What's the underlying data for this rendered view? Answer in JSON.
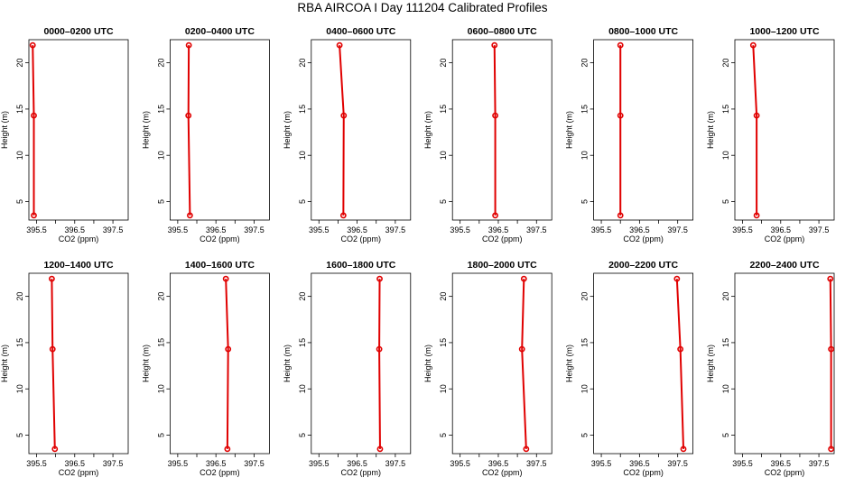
{
  "title": "RBA AIRCOA I  Day 111204  Calibrated Profiles",
  "colors": {
    "series": "#e00000",
    "axis": "#000000",
    "background": "#ffffff"
  },
  "chart_data": [
    {
      "type": "line",
      "title": "0000–0200 UTC",
      "xlabel": "CO2 (ppm)",
      "ylabel": "Height (m)",
      "xlim": [
        395.3,
        397.9
      ],
      "ylim": [
        3,
        22.5
      ],
      "x_ticks": [
        "395.5",
        "396.5",
        "397.5"
      ],
      "y_ticks": [
        "5",
        "10",
        "15",
        "20"
      ],
      "grid": false,
      "series": [
        {
          "heights": [
            3.5,
            14.3,
            21.9
          ],
          "values": [
            395.43,
            395.43,
            395.4
          ]
        }
      ]
    },
    {
      "type": "line",
      "title": "0200–0400 UTC",
      "xlabel": "CO2 (ppm)",
      "ylabel": "Height (m)",
      "xlim": [
        395.3,
        397.9
      ],
      "ylim": [
        3,
        22.5
      ],
      "x_ticks": [
        "395.5",
        "396.5",
        "397.5"
      ],
      "y_ticks": [
        "5",
        "10",
        "15",
        "20"
      ],
      "grid": false,
      "series": [
        {
          "heights": [
            3.5,
            14.3,
            21.9
          ],
          "values": [
            395.82,
            395.78,
            395.79
          ]
        }
      ]
    },
    {
      "type": "line",
      "title": "0400–0600 UTC",
      "xlabel": "CO2 (ppm)",
      "ylabel": "Height (m)",
      "xlim": [
        395.3,
        397.9
      ],
      "ylim": [
        3,
        22.5
      ],
      "x_ticks": [
        "395.5",
        "396.5",
        "397.5"
      ],
      "y_ticks": [
        "5",
        "10",
        "15",
        "20"
      ],
      "grid": false,
      "series": [
        {
          "heights": [
            3.5,
            14.3,
            21.9
          ],
          "values": [
            396.14,
            396.15,
            396.04
          ]
        }
      ]
    },
    {
      "type": "line",
      "title": "0600–0800 UTC",
      "xlabel": "CO2 (ppm)",
      "ylabel": "Height (m)",
      "xlim": [
        395.3,
        397.9
      ],
      "ylim": [
        3,
        22.5
      ],
      "x_ticks": [
        "395.5",
        "396.5",
        "397.5"
      ],
      "y_ticks": [
        "5",
        "10",
        "15",
        "20"
      ],
      "grid": false,
      "series": [
        {
          "heights": [
            3.5,
            14.3,
            21.9
          ],
          "values": [
            396.42,
            396.42,
            396.4
          ]
        }
      ]
    },
    {
      "type": "line",
      "title": "0800–1000 UTC",
      "xlabel": "CO2 (ppm)",
      "ylabel": "Height (m)",
      "xlim": [
        395.3,
        397.9
      ],
      "ylim": [
        3,
        22.5
      ],
      "x_ticks": [
        "395.5",
        "396.5",
        "397.5"
      ],
      "y_ticks": [
        "5",
        "10",
        "15",
        "20"
      ],
      "grid": false,
      "series": [
        {
          "heights": [
            3.5,
            14.3,
            21.9
          ],
          "values": [
            396.0,
            396.0,
            396.0
          ]
        }
      ]
    },
    {
      "type": "line",
      "title": "1000–1200 UTC",
      "xlabel": "CO2 (ppm)",
      "ylabel": "Height (m)",
      "xlim": [
        395.3,
        397.9
      ],
      "ylim": [
        3,
        22.5
      ],
      "x_ticks": [
        "395.5",
        "396.5",
        "397.5"
      ],
      "y_ticks": [
        "5",
        "10",
        "15",
        "20"
      ],
      "grid": false,
      "series": [
        {
          "heights": [
            3.5,
            14.3,
            21.9
          ],
          "values": [
            395.87,
            395.87,
            395.78
          ]
        }
      ]
    },
    {
      "type": "line",
      "title": "1200–1400 UTC",
      "xlabel": "CO2 (ppm)",
      "ylabel": "Height (m)",
      "xlim": [
        395.3,
        397.9
      ],
      "ylim": [
        3,
        22.5
      ],
      "x_ticks": [
        "395.5",
        "396.5",
        "397.5"
      ],
      "y_ticks": [
        "5",
        "10",
        "15",
        "20"
      ],
      "grid": false,
      "series": [
        {
          "heights": [
            3.5,
            14.3,
            21.9
          ],
          "values": [
            395.98,
            395.92,
            395.9
          ]
        }
      ]
    },
    {
      "type": "line",
      "title": "1400–1600 UTC",
      "xlabel": "CO2 (ppm)",
      "ylabel": "Height (m)",
      "xlim": [
        395.3,
        397.9
      ],
      "ylim": [
        3,
        22.5
      ],
      "x_ticks": [
        "395.5",
        "396.5",
        "397.5"
      ],
      "y_ticks": [
        "5",
        "10",
        "15",
        "20"
      ],
      "grid": false,
      "series": [
        {
          "heights": [
            3.5,
            14.3,
            21.9
          ],
          "values": [
            396.8,
            396.82,
            396.76
          ]
        }
      ]
    },
    {
      "type": "line",
      "title": "1600–1800 UTC",
      "xlabel": "CO2 (ppm)",
      "ylabel": "Height (m)",
      "xlim": [
        395.3,
        397.9
      ],
      "ylim": [
        3,
        22.5
      ],
      "x_ticks": [
        "395.5",
        "396.5",
        "397.5"
      ],
      "y_ticks": [
        "5",
        "10",
        "15",
        "20"
      ],
      "grid": false,
      "series": [
        {
          "heights": [
            3.5,
            14.3,
            21.9
          ],
          "values": [
            397.1,
            397.08,
            397.09
          ]
        }
      ]
    },
    {
      "type": "line",
      "title": "1800–2000 UTC",
      "xlabel": "CO2 (ppm)",
      "ylabel": "Height (m)",
      "xlim": [
        395.3,
        397.9
      ],
      "ylim": [
        3,
        22.5
      ],
      "x_ticks": [
        "395.5",
        "396.5",
        "397.5"
      ],
      "y_ticks": [
        "5",
        "10",
        "15",
        "20"
      ],
      "grid": false,
      "series": [
        {
          "heights": [
            3.5,
            14.3,
            21.9
          ],
          "values": [
            397.23,
            397.12,
            397.17
          ]
        }
      ]
    },
    {
      "type": "line",
      "title": "2000–2200 UTC",
      "xlabel": "CO2 (ppm)",
      "ylabel": "Height (m)",
      "xlim": [
        395.3,
        397.9
      ],
      "ylim": [
        3,
        22.5
      ],
      "x_ticks": [
        "395.5",
        "396.5",
        "397.5"
      ],
      "y_ticks": [
        "5",
        "10",
        "15",
        "20"
      ],
      "grid": false,
      "series": [
        {
          "heights": [
            3.5,
            14.3,
            21.9
          ],
          "values": [
            397.65,
            397.57,
            397.48
          ]
        }
      ]
    },
    {
      "type": "line",
      "title": "2200–2400 UTC",
      "xlabel": "CO2 (ppm)",
      "ylabel": "Height (m)",
      "xlim": [
        395.3,
        397.9
      ],
      "ylim": [
        3,
        22.5
      ],
      "x_ticks": [
        "395.5",
        "396.5",
        "397.5"
      ],
      "y_ticks": [
        "5",
        "10",
        "15",
        "20"
      ],
      "grid": false,
      "series": [
        {
          "heights": [
            3.5,
            14.3,
            21.9
          ],
          "values": [
            397.82,
            397.82,
            397.8
          ]
        }
      ]
    }
  ]
}
